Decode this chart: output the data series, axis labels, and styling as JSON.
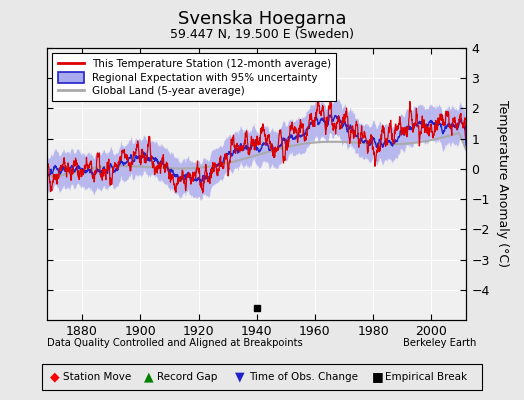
{
  "title": "Svenska Hoegarna",
  "subtitle": "59.447 N, 19.500 E (Sweden)",
  "ylabel": "Temperature Anomaly (°C)",
  "xlabel_left": "Data Quality Controlled and Aligned at Breakpoints",
  "xlabel_right": "Berkeley Earth",
  "ylim": [
    -5,
    4
  ],
  "yticks": [
    -4,
    -3,
    -2,
    -1,
    0,
    1,
    2,
    3,
    4
  ],
  "xlim": [
    1868,
    2012
  ],
  "xticks": [
    1880,
    1900,
    1920,
    1940,
    1960,
    1980,
    2000
  ],
  "background_color": "#e8e8e8",
  "plot_bg_color": "#f0f0f0",
  "red_color": "#dd0000",
  "blue_color": "#2222cc",
  "blue_fill_color": "#aaaaee",
  "gray_color": "#aaaaaa",
  "legend_items": [
    "This Temperature Station (12-month average)",
    "Regional Expectation with 95% uncertainty",
    "Global Land (5-year average)"
  ],
  "seed": 42
}
